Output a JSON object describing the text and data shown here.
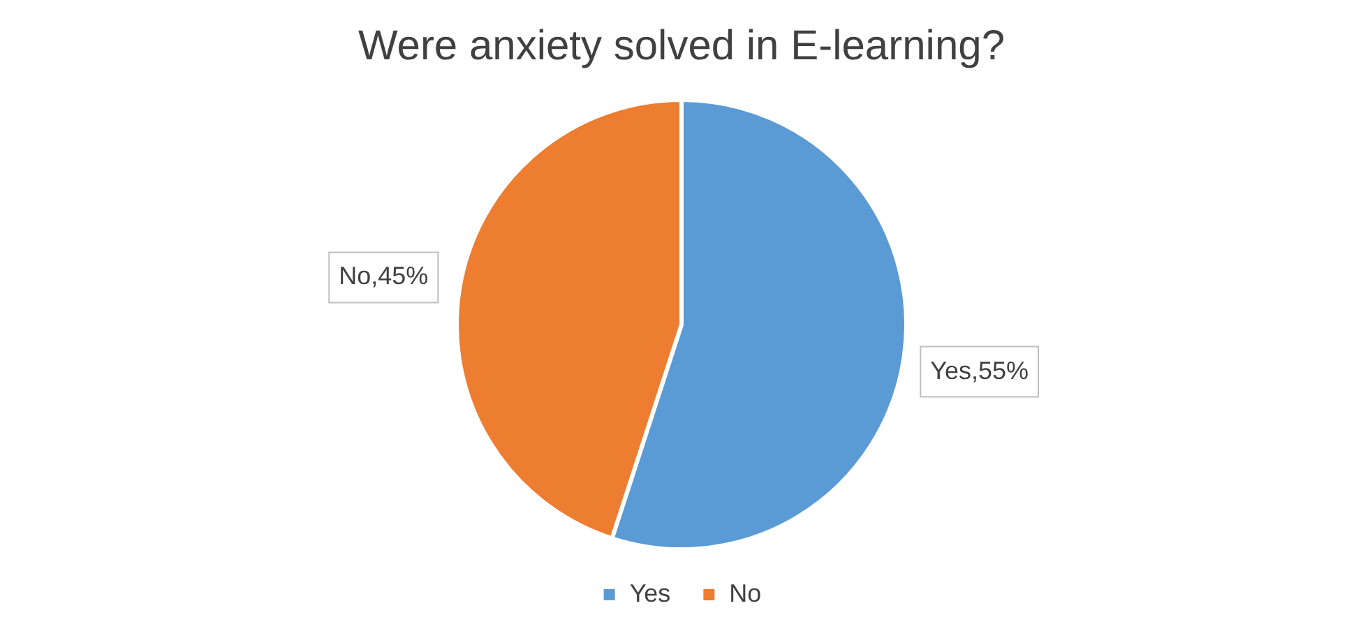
{
  "chart_data": {
    "type": "pie",
    "title": "Were anxiety solved in E-learning?",
    "categories": [
      "Yes",
      "No"
    ],
    "values": [
      55,
      45
    ],
    "colors": [
      "#5b9bd5",
      "#ed7d31"
    ],
    "value_labels": [
      "Yes,55%",
      "No,45%"
    ],
    "legend": "bottom"
  }
}
